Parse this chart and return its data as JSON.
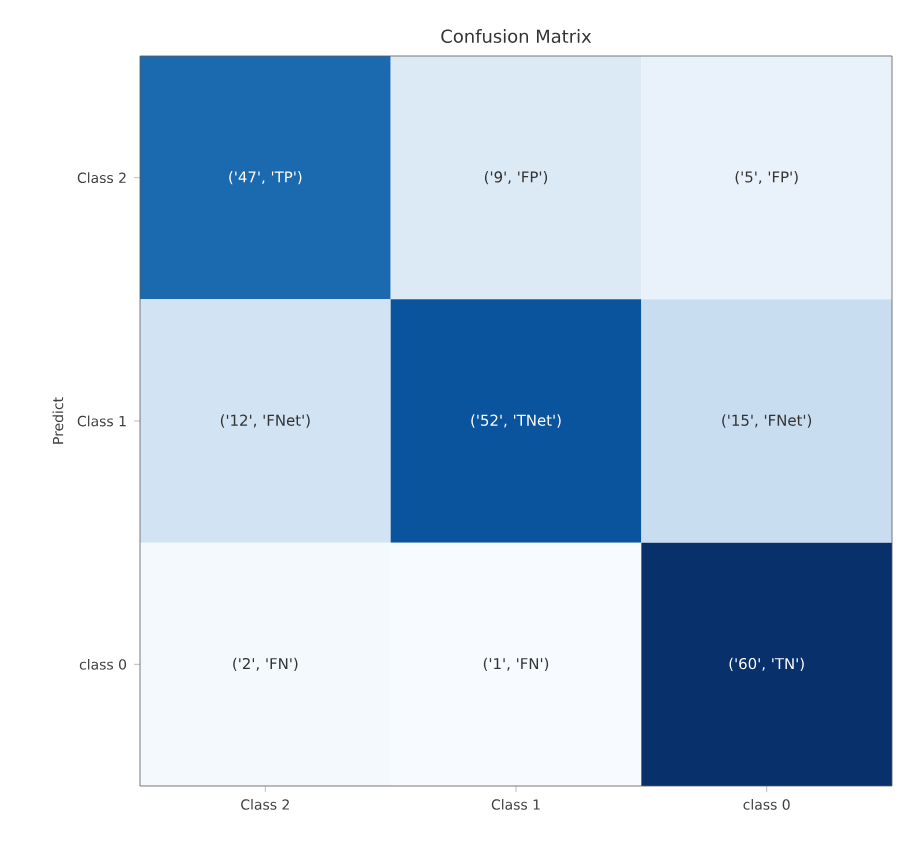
{
  "chart_data": {
    "type": "heatmap",
    "title": "Confusion Matrix",
    "ylabel": "Predict",
    "categories": [
      "Class 2",
      "Class 1",
      "class 0"
    ],
    "y_categories": [
      "Class 2",
      "Class 1",
      "class 0"
    ],
    "cells": [
      [
        47,
        9,
        5
      ],
      [
        12,
        52,
        15
      ],
      [
        2,
        1,
        60
      ]
    ],
    "cell_labels": [
      [
        "('47', 'TP')",
        "('9', 'FP')",
        "('5', 'FP')"
      ],
      [
        "('12', 'FNet')",
        "('52', 'TNet')",
        "('15', 'FNet')"
      ],
      [
        "('2', 'FN')",
        "('1', 'FN')",
        "('60', 'TN')"
      ]
    ]
  }
}
